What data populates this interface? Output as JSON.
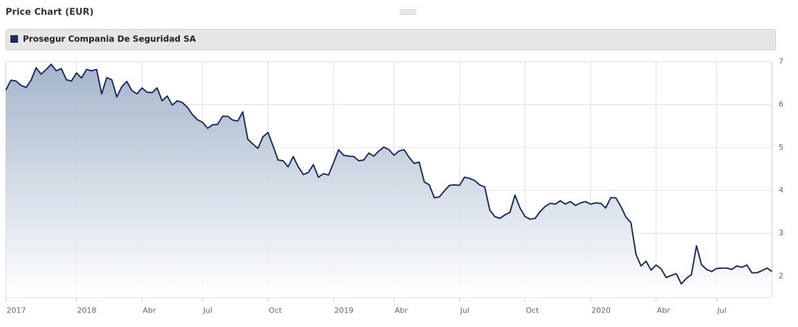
{
  "chart_data": {
    "type": "area",
    "title": "Price Chart (EUR)",
    "categories": [
      "2017",
      null,
      null,
      null,
      null,
      null,
      null,
      null,
      null,
      null,
      null,
      null,
      null,
      null,
      "2018",
      null,
      null,
      null,
      null,
      null,
      null,
      null,
      null,
      null,
      null,
      null,
      null,
      "Abr",
      null,
      null,
      null,
      null,
      null,
      null,
      null,
      null,
      null,
      null,
      null,
      "Jul",
      null,
      null,
      null,
      null,
      null,
      null,
      null,
      null,
      null,
      null,
      null,
      null,
      "Oct",
      null,
      null,
      null,
      null,
      null,
      null,
      null,
      null,
      null,
      null,
      null,
      null,
      "2019",
      null,
      null,
      null,
      null,
      null,
      null,
      null,
      null,
      null,
      null,
      null,
      "Abr",
      null,
      null,
      null,
      null,
      null,
      null,
      null,
      null,
      null,
      null,
      null,
      null,
      "Jul",
      null,
      null,
      null,
      null,
      null,
      null,
      null,
      null,
      null,
      null,
      null,
      null,
      "Oct",
      null,
      null,
      null,
      null,
      null,
      null,
      null,
      null,
      null,
      null,
      null,
      null,
      "2020",
      null,
      null,
      null,
      null,
      null,
      null,
      null,
      null,
      null,
      null,
      null,
      null,
      "Abr",
      null,
      null,
      null,
      null,
      null,
      null,
      null,
      null,
      null,
      null,
      null,
      "Jul",
      null,
      null,
      null,
      null,
      null,
      null,
      null,
      null,
      null,
      null,
      null
    ],
    "series": [
      {
        "name": "Prosegur Compania De Seguridad SA",
        "color": "#1c2b5e",
        "values": [
          6.34,
          6.57,
          6.55,
          6.45,
          6.4,
          6.57,
          6.86,
          6.71,
          6.82,
          6.94,
          6.79,
          6.84,
          6.58,
          6.55,
          6.74,
          6.62,
          6.82,
          6.79,
          6.82,
          6.25,
          6.63,
          6.58,
          6.18,
          6.42,
          6.54,
          6.33,
          6.25,
          6.39,
          6.29,
          6.28,
          6.39,
          6.09,
          6.2,
          5.99,
          6.09,
          6.05,
          5.94,
          5.77,
          5.65,
          5.59,
          5.45,
          5.53,
          5.54,
          5.73,
          5.73,
          5.64,
          5.62,
          5.83,
          5.19,
          5.08,
          4.98,
          5.25,
          5.35,
          5.04,
          4.71,
          4.69,
          4.55,
          4.79,
          4.55,
          4.37,
          4.42,
          4.6,
          4.31,
          4.39,
          4.36,
          4.64,
          4.95,
          4.82,
          4.8,
          4.79,
          4.69,
          4.71,
          4.87,
          4.8,
          4.92,
          5.01,
          4.95,
          4.82,
          4.92,
          4.95,
          4.77,
          4.63,
          4.66,
          4.2,
          4.13,
          3.83,
          3.85,
          3.99,
          4.12,
          4.13,
          4.12,
          4.31,
          4.28,
          4.23,
          4.13,
          4.08,
          3.54,
          3.39,
          3.35,
          3.43,
          3.49,
          3.89,
          3.59,
          3.39,
          3.33,
          3.35,
          3.51,
          3.63,
          3.7,
          3.68,
          3.76,
          3.68,
          3.74,
          3.65,
          3.71,
          3.74,
          3.68,
          3.71,
          3.7,
          3.59,
          3.83,
          3.83,
          3.63,
          3.38,
          3.25,
          2.51,
          2.24,
          2.35,
          2.14,
          2.26,
          2.17,
          1.97,
          2.02,
          2.06,
          1.82,
          1.95,
          2.04,
          2.71,
          2.27,
          2.16,
          2.11,
          2.18,
          2.19,
          2.19,
          2.16,
          2.24,
          2.21,
          2.26,
          2.08,
          2.08,
          2.13,
          2.19,
          2.11
        ]
      }
    ],
    "ylim": [
      1.5,
      7
    ],
    "yticks": [
      2,
      3,
      4,
      5,
      6,
      7
    ],
    "grid": true
  }
}
